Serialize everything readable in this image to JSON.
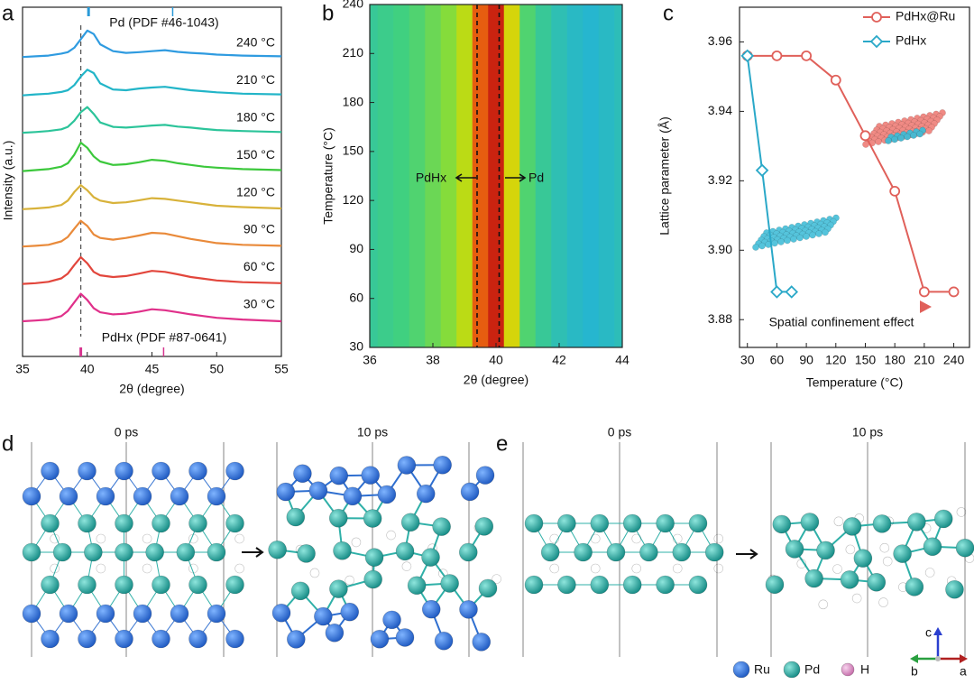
{
  "chart_data": [
    {
      "type": "line",
      "panel": "a",
      "xlabel": "2θ (degree)",
      "ylabel": "Intensity (a.u.)",
      "x": [
        35,
        36,
        37,
        38,
        38.5,
        39,
        39.5,
        40,
        40.5,
        41,
        42,
        43,
        44,
        45,
        46,
        47,
        48,
        49,
        50,
        52,
        55
      ],
      "xlim": [
        35,
        55
      ],
      "xticks": [
        35,
        40,
        45,
        50,
        55
      ],
      "series": [
        {
          "name": "240 °C",
          "color": "#2f9be0",
          "values": [
            0.18,
            0.2,
            0.22,
            0.28,
            0.32,
            0.45,
            0.7,
            0.95,
            0.85,
            0.55,
            0.35,
            0.3,
            0.32,
            0.35,
            0.38,
            0.33,
            0.3,
            0.28,
            0.25,
            0.22,
            0.2
          ]
        },
        {
          "name": "210 °C",
          "color": "#22b5c8",
          "values": [
            0.15,
            0.18,
            0.2,
            0.25,
            0.3,
            0.45,
            0.7,
            0.9,
            0.8,
            0.5,
            0.32,
            0.3,
            0.35,
            0.38,
            0.4,
            0.35,
            0.3,
            0.27,
            0.24,
            0.2,
            0.18
          ]
        },
        {
          "name": "180 °C",
          "color": "#2cc49a",
          "values": [
            0.15,
            0.17,
            0.2,
            0.25,
            0.32,
            0.5,
            0.75,
            0.9,
            0.7,
            0.45,
            0.32,
            0.3,
            0.33,
            0.36,
            0.38,
            0.33,
            0.3,
            0.26,
            0.23,
            0.2,
            0.17
          ]
        },
        {
          "name": "150 °C",
          "color": "#3cc83c",
          "values": [
            0.12,
            0.15,
            0.18,
            0.25,
            0.35,
            0.6,
            0.95,
            0.8,
            0.55,
            0.4,
            0.3,
            0.32,
            0.38,
            0.45,
            0.42,
            0.35,
            0.3,
            0.25,
            0.22,
            0.18,
            0.15
          ]
        },
        {
          "name": "120 °C",
          "color": "#d8b23a",
          "values": [
            0.1,
            0.12,
            0.15,
            0.22,
            0.35,
            0.6,
            0.8,
            0.65,
            0.45,
            0.35,
            0.28,
            0.3,
            0.36,
            0.42,
            0.4,
            0.35,
            0.3,
            0.25,
            0.2,
            0.16,
            0.12
          ]
        },
        {
          "name": "90 °C",
          "color": "#e98a3a",
          "values": [
            0.1,
            0.12,
            0.15,
            0.25,
            0.38,
            0.62,
            0.85,
            0.7,
            0.45,
            0.35,
            0.3,
            0.35,
            0.42,
            0.5,
            0.48,
            0.4,
            0.32,
            0.26,
            0.2,
            0.15,
            0.12
          ]
        },
        {
          "name": "60 °C",
          "color": "#e2463c",
          "values": [
            0.1,
            0.12,
            0.16,
            0.26,
            0.4,
            0.65,
            0.88,
            0.7,
            0.45,
            0.35,
            0.3,
            0.33,
            0.4,
            0.48,
            0.45,
            0.38,
            0.3,
            0.25,
            0.2,
            0.15,
            0.12
          ]
        },
        {
          "name": "30 °C",
          "color": "#e0308a",
          "values": [
            0.1,
            0.12,
            0.15,
            0.25,
            0.4,
            0.65,
            0.9,
            0.72,
            0.48,
            0.36,
            0.3,
            0.32,
            0.38,
            0.45,
            0.42,
            0.36,
            0.3,
            0.25,
            0.2,
            0.15,
            0.1
          ]
        }
      ],
      "references": [
        {
          "label": "Pd (PDF #46-1043)",
          "color": "#2a9ad8",
          "positions": [
            40.1,
            46.6
          ]
        },
        {
          "label": "PdHx (PDF #87-0641)",
          "color": "#d6358f",
          "positions": [
            39.5,
            45.9
          ]
        }
      ],
      "dashed_line": 39.5
    },
    {
      "type": "heatmap",
      "panel": "b",
      "xlabel": "2θ (degree)",
      "ylabel": "Temperature (°C)",
      "x": [
        36,
        36.5,
        37,
        37.5,
        38,
        38.5,
        39,
        39.5,
        40,
        40.5,
        41,
        41.5,
        42,
        42.5,
        43,
        43.5,
        44
      ],
      "values": [
        0.38,
        0.4,
        0.42,
        0.45,
        0.5,
        0.55,
        0.65,
        0.92,
        0.98,
        0.7,
        0.45,
        0.38,
        0.33,
        0.3,
        0.28,
        0.3,
        0.32
      ],
      "xlim": [
        36,
        44
      ],
      "xticks": [
        36,
        38,
        40,
        42,
        44
      ],
      "ylim": [
        30,
        240
      ],
      "yticks": [
        30,
        60,
        90,
        120,
        150,
        180,
        210,
        240
      ],
      "dashed_lines": [
        39.4,
        40.1
      ],
      "annotations": [
        "PdHx",
        "Pd"
      ]
    },
    {
      "type": "line",
      "panel": "c",
      "xlabel": "Temperature (°C)",
      "ylabel": "Lattice parameter (Å)",
      "xlim": [
        22,
        256
      ],
      "xticks": [
        30,
        60,
        90,
        120,
        150,
        180,
        210,
        240
      ],
      "ylim": [
        3.872,
        3.97
      ],
      "yticks": [
        3.88,
        {
          "value": 3.9,
          "label": "3.90"
        },
        3.92,
        3.94,
        3.96
      ],
      "legend": "top-right",
      "series": [
        {
          "name": "PdHx@Ru",
          "color": "#e0605a",
          "marker": "circle",
          "x": [
            30,
            60,
            90,
            120,
            150,
            180,
            210,
            240
          ],
          "values": [
            3.956,
            3.956,
            3.956,
            3.949,
            3.933,
            3.917,
            3.888,
            3.888
          ]
        },
        {
          "name": "PdHx",
          "color": "#2aa8c8",
          "marker": "diamond",
          "x": [
            30,
            45,
            60,
            75
          ],
          "values": [
            3.956,
            3.923,
            3.888,
            3.888
          ]
        }
      ],
      "annotation": "Spatial confinement effect"
    }
  ],
  "structures": {
    "d": {
      "panel": "d",
      "frames": [
        "0 ps",
        "10 ps"
      ]
    },
    "e": {
      "panel": "e",
      "frames": [
        "0 ps",
        "10 ps"
      ]
    },
    "legend": [
      "Ru",
      "Pd",
      "H"
    ],
    "axes": [
      "c",
      "b",
      "a"
    ]
  }
}
